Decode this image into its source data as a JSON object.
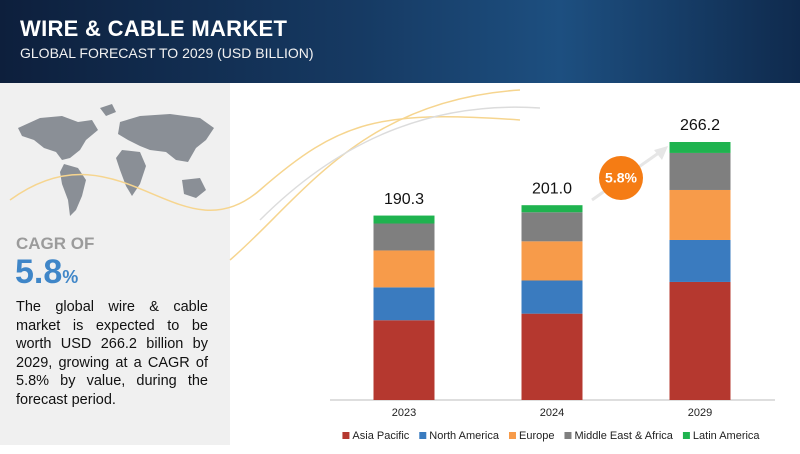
{
  "chart_data": {
    "type": "bar",
    "stacked": true,
    "title": "WIRE & CABLE MARKET",
    "subtitle": "GLOBAL FORECAST TO 2029 (USD BILLION)",
    "cagr_label": "CAGR OF",
    "cagr_number": "5.8",
    "cagr_unit": "%",
    "cagr_badge": "5.8%",
    "description": "The global wire & cable market is expected to be worth USD 266.2 billion by 2029, growing at a CAGR of 5.8% by value, during the forecast period.",
    "categories": [
      "2023",
      "2024",
      "2029"
    ],
    "totals": [
      190.3,
      201,
      266.2
    ],
    "total_labels": [
      "190.3",
      "201.0",
      "266.2"
    ],
    "series": [
      {
        "name": "Asia Pacific",
        "color": "#b5382f",
        "values": [
          82.3,
          89.1,
          121.8
        ]
      },
      {
        "name": "North America",
        "color": "#3a7bbf",
        "values": [
          33.9,
          34.2,
          43.3
        ]
      },
      {
        "name": "Europe",
        "color": "#f79b4a",
        "values": [
          38.1,
          40.4,
          51.6
        ]
      },
      {
        "name": "Middle East & Africa",
        "color": "#7f7f7f",
        "values": [
          27.8,
          30.0,
          38.2
        ]
      },
      {
        "name": "Latin America",
        "color": "#1fb34f",
        "values": [
          8.2,
          7.3,
          11.3
        ]
      }
    ],
    "legend": "bottom"
  }
}
